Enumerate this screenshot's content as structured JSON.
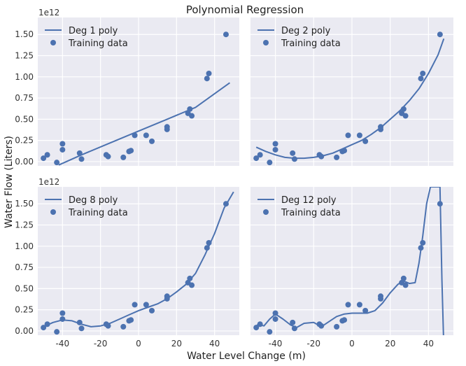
{
  "figure": {
    "title": "Polynomial Regression",
    "xlabel": "Water Level Change (m)",
    "ylabel": "Water Flow (Liters)",
    "y_scale_label": "1e12"
  },
  "colors": {
    "axes_bg": "#eaeaf2",
    "grid": "#ffffff",
    "line": "#4c72b0",
    "points": "#4c72b0"
  },
  "chart_data": [
    {
      "type": "scatter",
      "title": "",
      "x_ticks": [
        -40,
        -20,
        0,
        20,
        40
      ],
      "y_ticks": [
        0.0,
        0.25,
        0.5,
        0.75,
        1.0,
        1.25,
        1.5
      ],
      "y_tick_labels": [
        "0.00",
        "0.25",
        "0.50",
        "0.75",
        "1.00",
        "1.25",
        "1.50"
      ],
      "xlim": [
        -53,
        53
      ],
      "ylim": [
        -0.05,
        1.7
      ],
      "legend": {
        "line": "Deg 1 poly",
        "points": "Training data"
      },
      "legend_position": "upper-left",
      "scatter": {
        "x": [
          -50,
          -48,
          -43,
          -40,
          -40,
          -31,
          -30,
          -17,
          -16,
          -8,
          -5,
          -4,
          -2,
          4,
          7,
          15,
          15,
          26,
          27,
          28,
          36,
          37,
          46
        ],
        "y": [
          0.04,
          0.08,
          -0.01,
          0.14,
          0.21,
          0.1,
          0.03,
          0.08,
          0.06,
          0.05,
          0.12,
          0.13,
          0.31,
          0.31,
          0.24,
          0.38,
          0.41,
          0.57,
          0.62,
          0.54,
          0.98,
          1.04,
          1.5
        ]
      },
      "line": {
        "x": [
          -42,
          -30,
          -15,
          0,
          15,
          30,
          48
        ],
        "y": [
          -0.04,
          0.08,
          0.22,
          0.36,
          0.5,
          0.64,
          0.93
        ]
      }
    },
    {
      "type": "scatter",
      "title": "",
      "x_ticks": [
        -40,
        -20,
        0,
        20,
        40
      ],
      "y_ticks": [
        0.0,
        0.25,
        0.5,
        0.75,
        1.0,
        1.25,
        1.5
      ],
      "xlim": [
        -53,
        53
      ],
      "ylim": [
        -0.05,
        1.7
      ],
      "legend": {
        "line": "Deg 2 poly",
        "points": "Training data"
      },
      "legend_position": "upper-left",
      "scatter": {
        "x": [
          -50,
          -48,
          -43,
          -40,
          -40,
          -31,
          -30,
          -17,
          -16,
          -8,
          -5,
          -4,
          -2,
          4,
          7,
          15,
          15,
          26,
          27,
          28,
          36,
          37,
          46
        ],
        "y": [
          0.04,
          0.08,
          -0.01,
          0.14,
          0.21,
          0.1,
          0.03,
          0.08,
          0.06,
          0.05,
          0.12,
          0.13,
          0.31,
          0.31,
          0.24,
          0.38,
          0.41,
          0.57,
          0.62,
          0.54,
          0.98,
          1.04,
          1.5
        ]
      },
      "line": {
        "x": [
          -50,
          -45,
          -40,
          -35,
          -30,
          -25,
          -20,
          -15,
          -10,
          -5,
          0,
          5,
          10,
          15,
          20,
          25,
          30,
          35,
          40,
          45,
          48
        ],
        "y": [
          0.17,
          0.12,
          0.08,
          0.05,
          0.04,
          0.04,
          0.05,
          0.07,
          0.1,
          0.15,
          0.2,
          0.25,
          0.32,
          0.4,
          0.5,
          0.6,
          0.72,
          0.86,
          1.04,
          1.26,
          1.45
        ]
      }
    },
    {
      "type": "scatter",
      "title": "",
      "x_ticks": [
        -40,
        -20,
        0,
        20,
        40
      ],
      "x_tick_labels": [
        "-40",
        "-20",
        "0",
        "20",
        "40"
      ],
      "y_ticks": [
        0.0,
        0.25,
        0.5,
        0.75,
        1.0,
        1.25,
        1.5
      ],
      "y_tick_labels": [
        "0.00",
        "0.25",
        "0.50",
        "0.75",
        "1.00",
        "1.25",
        "1.50"
      ],
      "xlim": [
        -53,
        53
      ],
      "ylim": [
        -0.05,
        1.7
      ],
      "legend": {
        "line": "Deg 8 poly",
        "points": "Training data"
      },
      "legend_position": "upper-left",
      "scatter": {
        "x": [
          -50,
          -48,
          -43,
          -40,
          -40,
          -31,
          -30,
          -17,
          -16,
          -8,
          -5,
          -4,
          -2,
          4,
          7,
          15,
          15,
          26,
          27,
          28,
          36,
          37,
          46
        ],
        "y": [
          0.04,
          0.08,
          -0.01,
          0.14,
          0.21,
          0.1,
          0.03,
          0.08,
          0.06,
          0.05,
          0.12,
          0.13,
          0.31,
          0.31,
          0.24,
          0.38,
          0.41,
          0.57,
          0.62,
          0.54,
          0.98,
          1.04,
          1.5
        ]
      },
      "line": {
        "x": [
          -50,
          -45,
          -40,
          -35,
          -30,
          -25,
          -20,
          -15,
          -10,
          -5,
          0,
          5,
          10,
          15,
          20,
          25,
          30,
          35,
          40,
          45,
          50
        ],
        "y": [
          0.05,
          0.1,
          0.13,
          0.12,
          0.08,
          0.05,
          0.06,
          0.09,
          0.14,
          0.19,
          0.24,
          0.28,
          0.32,
          0.38,
          0.46,
          0.55,
          0.68,
          0.9,
          1.15,
          1.45,
          1.64
        ]
      }
    },
    {
      "type": "scatter",
      "title": "",
      "x_ticks": [
        -40,
        -20,
        0,
        20,
        40
      ],
      "x_tick_labels": [
        "-40",
        "-20",
        "0",
        "20",
        "40"
      ],
      "y_ticks": [
        0.0,
        0.25,
        0.5,
        0.75,
        1.0,
        1.25,
        1.5
      ],
      "xlim": [
        -53,
        53
      ],
      "ylim": [
        -0.05,
        1.7
      ],
      "legend": {
        "line": "Deg 12 poly",
        "points": "Training data"
      },
      "legend_position": "upper-left",
      "scatter": {
        "x": [
          -50,
          -48,
          -43,
          -40,
          -40,
          -31,
          -30,
          -17,
          -16,
          -8,
          -5,
          -4,
          -2,
          4,
          7,
          15,
          15,
          26,
          27,
          28,
          36,
          37,
          46
        ],
        "y": [
          0.04,
          0.08,
          -0.01,
          0.14,
          0.21,
          0.1,
          0.03,
          0.08,
          0.06,
          0.05,
          0.12,
          0.13,
          0.31,
          0.31,
          0.24,
          0.38,
          0.41,
          0.57,
          0.62,
          0.54,
          0.98,
          1.04,
          1.5
        ]
      },
      "line": {
        "x": [
          -51,
          -49,
          -46,
          -43,
          -40,
          -36,
          -32,
          -29,
          -25,
          -20,
          -16,
          -12,
          -8,
          -4,
          0,
          4,
          8,
          12,
          16,
          20,
          24,
          27,
          30,
          33,
          35,
          37,
          39,
          41,
          42,
          43.5,
          45,
          46,
          47,
          47.8
        ],
        "y": [
          0.03,
          0.08,
          0.06,
          0.14,
          0.2,
          0.14,
          0.07,
          0.04,
          0.09,
          0.1,
          0.05,
          0.11,
          0.17,
          0.2,
          0.21,
          0.21,
          0.21,
          0.24,
          0.33,
          0.45,
          0.55,
          0.59,
          0.56,
          0.57,
          0.8,
          1.12,
          1.5,
          1.7,
          1.7,
          1.7,
          1.7,
          1.7,
          0.6,
          -0.05
        ]
      }
    }
  ]
}
